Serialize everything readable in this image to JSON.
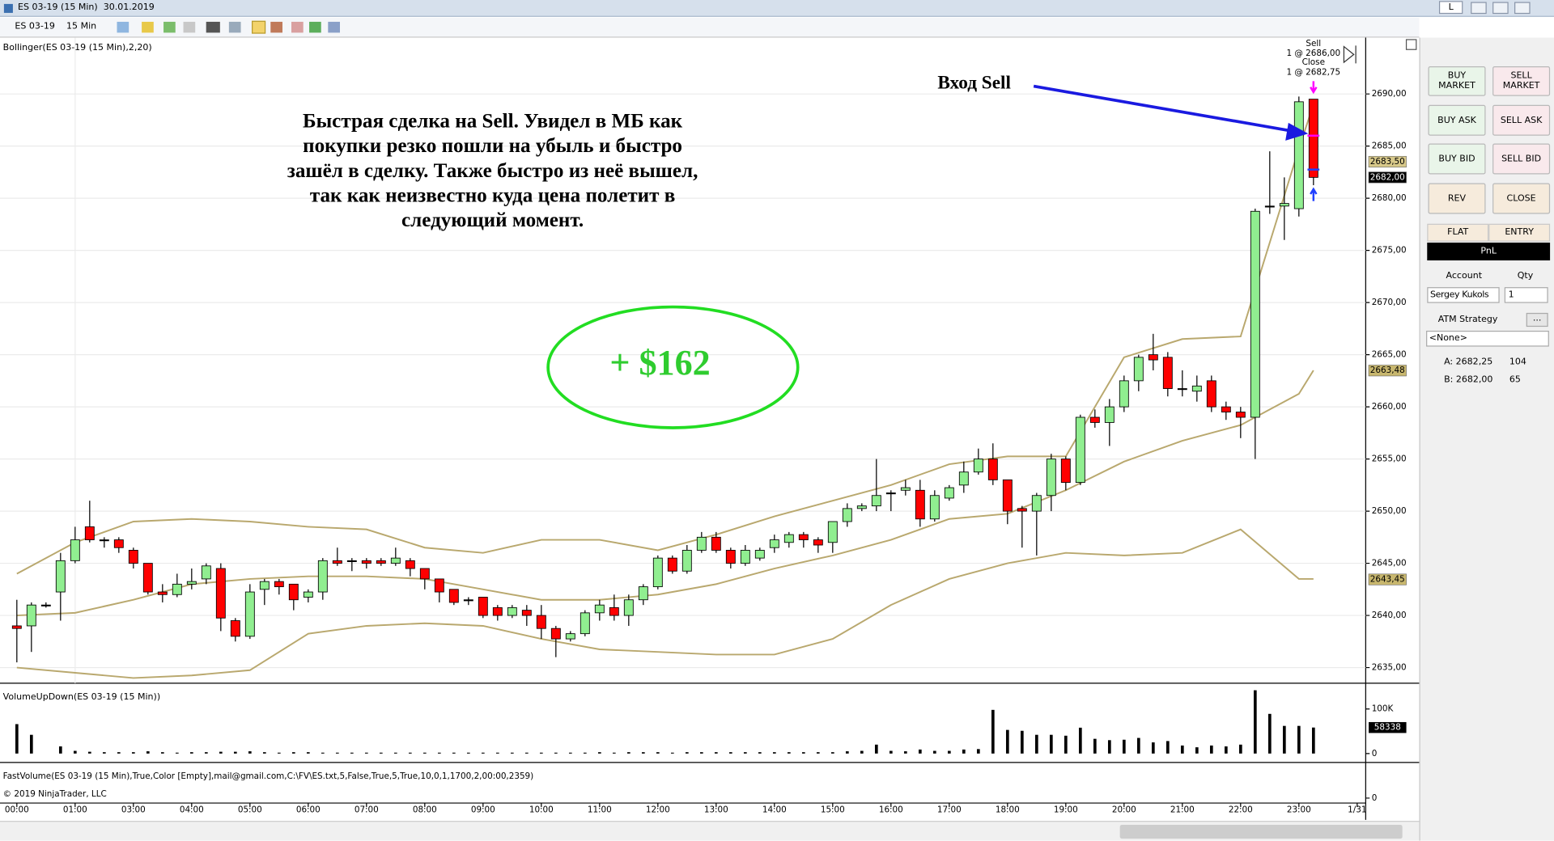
{
  "window": {
    "title": "ES 03-19 (15 Min)  30.01.2019",
    "button": "L"
  },
  "toolbar": {
    "instrument": "ES 03-19",
    "interval": "15 Min"
  },
  "chart_data": {
    "type": "candlestick",
    "indicator_label": "Bollinger(ES 03-19 (15 Min),2,20)",
    "up_color": "#90ee90",
    "down_color": "#ff0000",
    "band_color": "#b9a86e",
    "grid": true,
    "ylim": [
      2633.5,
      2695.4
    ],
    "yticks": [
      {
        "value": 2635,
        "label": "2635,00"
      },
      {
        "value": 2640,
        "label": "2640,00"
      },
      {
        "value": 2645,
        "label": "2645,00"
      },
      {
        "value": 2650,
        "label": "2650,00"
      },
      {
        "value": 2655,
        "label": "2655,00"
      },
      {
        "value": 2660,
        "label": "2660,00"
      },
      {
        "value": 2665,
        "label": "2665,00"
      },
      {
        "value": 2670,
        "label": "2670,00"
      },
      {
        "value": 2675,
        "label": "2675,00"
      },
      {
        "value": 2680,
        "label": "2680,00"
      },
      {
        "value": 2685,
        "label": "2685,00"
      },
      {
        "value": 2690,
        "label": "2690,00"
      }
    ],
    "time_labels": [
      "00:00",
      "01:00",
      "03:00",
      "04:00",
      "05:00",
      "06:00",
      "07:00",
      "08:00",
      "09:00",
      "10:00",
      "11:00",
      "12:00",
      "13:00",
      "14:00",
      "15:00",
      "16:00",
      "17:00",
      "18:00",
      "19:00",
      "20:00",
      "21:00",
      "22:00",
      "23:00",
      "1/31"
    ],
    "open": [
      2639,
      2639,
      2641,
      2642.25,
      2645.25,
      2648.5,
      2647.25,
      2647.25,
      2646.25,
      2645,
      2642.25,
      2642,
      2643,
      2643.5,
      2644.5,
      2639.5,
      2638,
      2642.5,
      2643.25,
      2643,
      2641.75,
      2642.25,
      2645.25,
      2645.25,
      2645.25,
      2645.25,
      2645,
      2645.25,
      2644.5,
      2643.5,
      2642.5,
      2641.5,
      2641.75,
      2640.75,
      2640,
      2640.5,
      2640,
      2638.75,
      2637.75,
      2638.25,
      2640.25,
      2640.75,
      2640,
      2641.5,
      2642.75,
      2645.5,
      2644.25,
      2646.25,
      2647.5,
      2646.25,
      2645,
      2645.5,
      2646.5,
      2647,
      2647.75,
      2647.25,
      2647,
      2649,
      2650.25,
      2650.5,
      2651.75,
      2652,
      2652,
      2649.25,
      2651.25,
      2652.5,
      2653.75,
      2655,
      2653,
      2650.25,
      2650,
      2651.5,
      2655,
      2652.75,
      2659,
      2658.5,
      2660,
      2662.5,
      2665,
      2664.75,
      2661.75,
      2661.5,
      2662.5,
      2660,
      2659.5,
      2659,
      2679.25,
      2679.25,
      2679,
      2689.5
    ],
    "high": [
      2641.5,
      2641.25,
      2641.25,
      2646,
      2648.5,
      2651,
      2647.5,
      2647.5,
      2646.5,
      2645,
      2643,
      2644,
      2644.5,
      2645,
      2645,
      2639.75,
      2643,
      2643.5,
      2643.5,
      2643,
      2642.5,
      2645.5,
      2646.5,
      2645.5,
      2645.5,
      2645.5,
      2646.5,
      2645.5,
      2644.5,
      2643.5,
      2642.5,
      2641.75,
      2641.75,
      2641,
      2641,
      2641,
      2641,
      2639,
      2638.5,
      2640.5,
      2641.5,
      2642,
      2642,
      2643,
      2645.75,
      2645.75,
      2646.75,
      2648,
      2648,
      2646.5,
      2646.75,
      2646.5,
      2647.75,
      2648,
      2648,
      2647.5,
      2649,
      2650.75,
      2650.75,
      2655,
      2652,
      2653,
      2653,
      2652,
      2652.5,
      2654.75,
      2656,
      2656.5,
      2653,
      2650.5,
      2651.75,
      2655.5,
      2655.25,
      2659.25,
      2659.75,
      2660.75,
      2663,
      2665,
      2667,
      2665.25,
      2663.5,
      2663,
      2663,
      2660.5,
      2660,
      2679,
      2684.5,
      2682,
      2689.75,
      2689.5
    ],
    "low": [
      2635.5,
      2636.5,
      2640.75,
      2639.5,
      2645,
      2647,
      2646.5,
      2646,
      2644.5,
      2642,
      2641.25,
      2641.75,
      2642.5,
      2643,
      2638.5,
      2637.5,
      2637.75,
      2641,
      2642,
      2640.5,
      2641.25,
      2641.5,
      2644.75,
      2644.25,
      2644.5,
      2644.75,
      2644.75,
      2643.75,
      2642.5,
      2641.25,
      2641,
      2641,
      2639.75,
      2639.5,
      2639.75,
      2639,
      2637.75,
      2636,
      2637.5,
      2638,
      2639.5,
      2639.5,
      2639,
      2641,
      2642.5,
      2644,
      2644,
      2646,
      2646,
      2644.5,
      2644.75,
      2645.25,
      2646,
      2646.5,
      2646.5,
      2646,
      2646,
      2648.5,
      2650,
      2650,
      2650,
      2651.5,
      2648.5,
      2649,
      2651,
      2651.75,
      2653.5,
      2652.5,
      2648.75,
      2646.5,
      2645.75,
      2650,
      2652,
      2652.5,
      2658,
      2656.25,
      2659.5,
      2661.5,
      2663.5,
      2661,
      2661,
      2660.5,
      2659.5,
      2658.75,
      2657,
      2655,
      2678.5,
      2676,
      2678.25,
      2681.25
    ],
    "close": [
      2638.75,
      2641,
      2641,
      2645.25,
      2647.25,
      2647.25,
      2647.25,
      2646.5,
      2645,
      2642.25,
      2642,
      2643,
      2643.25,
      2644.75,
      2639.75,
      2638,
      2642.25,
      2643.25,
      2642.75,
      2641.5,
      2642.25,
      2645.25,
      2645,
      2645.25,
      2645,
      2645,
      2645.5,
      2644.5,
      2643.5,
      2642.25,
      2641.25,
      2641.5,
      2640,
      2640,
      2640.75,
      2640,
      2638.75,
      2637.75,
      2638.25,
      2640.25,
      2641,
      2640,
      2641.5,
      2642.75,
      2645.5,
      2644.25,
      2646.25,
      2647.5,
      2646.25,
      2645,
      2646.25,
      2646.25,
      2647.25,
      2647.75,
      2647.25,
      2646.75,
      2649,
      2650.25,
      2650.5,
      2651.5,
      2651.75,
      2652.25,
      2649.25,
      2651.5,
      2652.25,
      2653.75,
      2655,
      2653,
      2650,
      2650,
      2651.5,
      2655,
      2652.75,
      2659,
      2658.5,
      2660,
      2662.5,
      2664.75,
      2664.5,
      2661.75,
      2661.75,
      2662,
      2660,
      2659.5,
      2659,
      2678.75,
      2679.25,
      2679.5,
      2689.25,
      2682
    ],
    "bands": {
      "x": [
        0,
        4,
        8,
        12,
        16,
        20,
        24,
        28,
        32,
        36,
        40,
        44,
        48,
        52,
        56,
        60,
        64,
        68,
        72,
        76,
        80,
        84,
        88,
        89
      ],
      "upper": [
        2644,
        2647,
        2649,
        2649.25,
        2649,
        2648.5,
        2648.25,
        2646.5,
        2646,
        2647.25,
        2647.25,
        2646.25,
        2647.75,
        2649.5,
        2651,
        2652.5,
        2654.5,
        2655.25,
        2655.25,
        2664.75,
        2666.5,
        2666.75,
        2684.75,
        2689
      ],
      "middle": [
        2640,
        2640.25,
        2641.5,
        2643,
        2643.5,
        2643.75,
        2643.75,
        2643.5,
        2642.5,
        2641.5,
        2641.5,
        2642,
        2643,
        2644.5,
        2645.75,
        2647.25,
        2649.25,
        2649.75,
        2652,
        2654.75,
        2656.75,
        2658.25,
        2661.25,
        2663.5
      ],
      "lower": [
        2635,
        2634.5,
        2634,
        2634.25,
        2634.75,
        2638.25,
        2639,
        2639.25,
        2639,
        2637.75,
        2636.75,
        2636.5,
        2636.25,
        2636.25,
        2637.75,
        2641,
        2643.5,
        2645,
        2646,
        2645.75,
        2646,
        2648.25,
        2643.5,
        2643.5
      ]
    },
    "price_markers": [
      {
        "value": 2683.5,
        "label": "2683,50",
        "color": "#d8c98a",
        "text_color": "#000000"
      },
      {
        "value": 2682,
        "label": "2682,00",
        "color": "#000000",
        "text_color": "#ffffff"
      },
      {
        "value": 2663.48,
        "label": "2663,48",
        "color": "#c8b76e",
        "text_color": "#000000"
      },
      {
        "value": 2643.45,
        "label": "2643,45",
        "color": "#c8b76e",
        "text_color": "#000000"
      }
    ],
    "trades": [
      {
        "action": "Sell",
        "label": "1 @ 2686,00",
        "price": 2686
      },
      {
        "action": "Close",
        "label": "1 @ 2682,75",
        "price": 2682.75
      }
    ],
    "annotations": {
      "comment": [
        "Быстрая сделка на Sell. Увидел в МБ как",
        "покупки резко пошли на убыль и быстро",
        "зашёл в сделку. Также быстро из неё вышел,",
        "так как неизвестно куда цена полетит в",
        "следующий момент."
      ],
      "profit": "+ $162",
      "entry": "Вход Sell"
    }
  },
  "volume_panel": {
    "label": "VolumeUpDown(ES 03-19 (15 Min))",
    "ylim": [
      -20000,
      153333
    ],
    "yticks": [
      {
        "value": 100000,
        "label": "100K"
      },
      0
    ],
    "marker": 58338,
    "values": [
      66000,
      42000,
      0,
      16000,
      6000,
      4000,
      3000,
      3000,
      3000,
      5000,
      3000,
      2000,
      3000,
      3000,
      4000,
      4000,
      5000,
      3000,
      2000,
      3000,
      3000,
      2000,
      2000,
      2000,
      2000,
      2000,
      2000,
      2000,
      2000,
      2000,
      2000,
      2000,
      2000,
      2000,
      2000,
      2000,
      2000,
      2000,
      2000,
      2000,
      3000,
      2000,
      3000,
      3000,
      3000,
      2000,
      3000,
      3000,
      3000,
      3000,
      3000,
      3000,
      3000,
      3000,
      3000,
      3000,
      3000,
      5000,
      6000,
      20000,
      6000,
      5000,
      9000,
      6000,
      6000,
      9000,
      10000,
      98000,
      53000,
      51000,
      42000,
      42000,
      40000,
      58000,
      33000,
      30000,
      31000,
      35000,
      25000,
      28000,
      18000,
      14000,
      18000,
      16000,
      20000,
      142000,
      89000,
      62000,
      62000,
      58338
    ]
  },
  "fast_volume_panel": {
    "label": "FastVolume(ES 03-19 (15 Min),True,Color [Empty],mail@gmail.com,C:\\FV\\ES.txt,5,False,True,5,True,10,0,1,1700,2,00:00,2359)",
    "yticks": [
      0
    ],
    "copyright": "© 2019 NinjaTrader, LLC"
  },
  "order_panel": {
    "buttons": [
      "BUY MARKET",
      "SELL MARKET",
      "BUY ASK",
      "SELL ASK",
      "BUY BID",
      "SELL BID",
      "REV",
      "CLOSE"
    ],
    "tabs": [
      "FLAT",
      "ENTRY"
    ],
    "pnl": "PnL",
    "account_label": "Account",
    "qty_label": "Qty",
    "account": "Sergey Kukols",
    "qty": "1",
    "atm_label": "ATM Strategy",
    "atm_button": "...",
    "atm": "<None>",
    "ask": "A: 2682,25",
    "ask_size": "104",
    "bid": "B: 2682,00",
    "bid_size": "65"
  }
}
